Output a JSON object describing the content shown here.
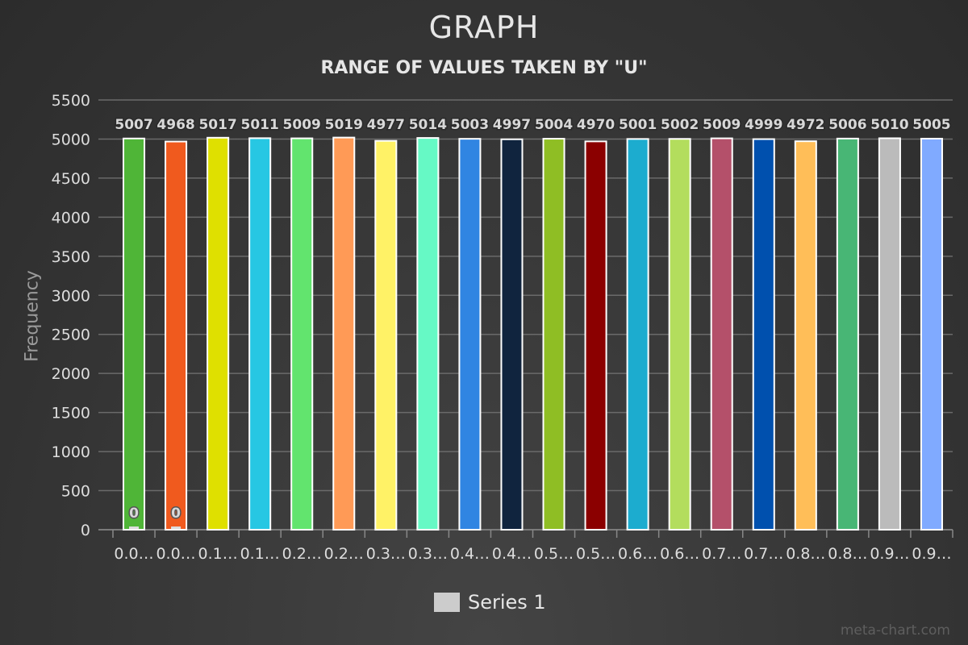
{
  "chart_data": {
    "type": "bar",
    "title": "GRAPH",
    "subtitle": "RANGE OF VALUES TAKEN BY \"U\"",
    "ylabel": "Frequency",
    "xlabel": "",
    "ylim": [
      0,
      5500
    ],
    "yticks": [
      0,
      500,
      1000,
      1500,
      2000,
      2500,
      3000,
      3500,
      4000,
      4500,
      5000,
      5500
    ],
    "grid": true,
    "legend_position": "bottom-center",
    "categories": [
      "0.0…",
      "0.0…",
      "0.1…",
      "0.1…",
      "0.2…",
      "0.2…",
      "0.3…",
      "0.3…",
      "0.4…",
      "0.4…",
      "0.5…",
      "0.5…",
      "0.6…",
      "0.6…",
      "0.7…",
      "0.7…",
      "0.8…",
      "0.8…",
      "0.9…",
      "0.9…"
    ],
    "series": [
      {
        "name": "Series 1",
        "values": [
          5007,
          4968,
          5017,
          5011,
          5009,
          5019,
          4977,
          5014,
          5003,
          4997,
          5004,
          4970,
          5001,
          5002,
          5009,
          4999,
          4972,
          5006,
          5010,
          5005
        ]
      }
    ],
    "zero_labels": [
      "0",
      "0"
    ],
    "bar_colors": [
      "#4fb537",
      "#f05a1e",
      "#dfe000",
      "#27c7e3",
      "#62e46e",
      "#ff9a56",
      "#fff266",
      "#66f9c5",
      "#3085e2",
      "#10243e",
      "#8fbe24",
      "#8b0000",
      "#1caccf",
      "#b3dd5d",
      "#b4506a",
      "#0050ae",
      "#ffbe58",
      "#48b675",
      "#bbbbbb",
      "#80aaff"
    ]
  },
  "legend": {
    "label": "Series 1",
    "color": "#cccccc"
  },
  "watermark": "meta-chart.com"
}
